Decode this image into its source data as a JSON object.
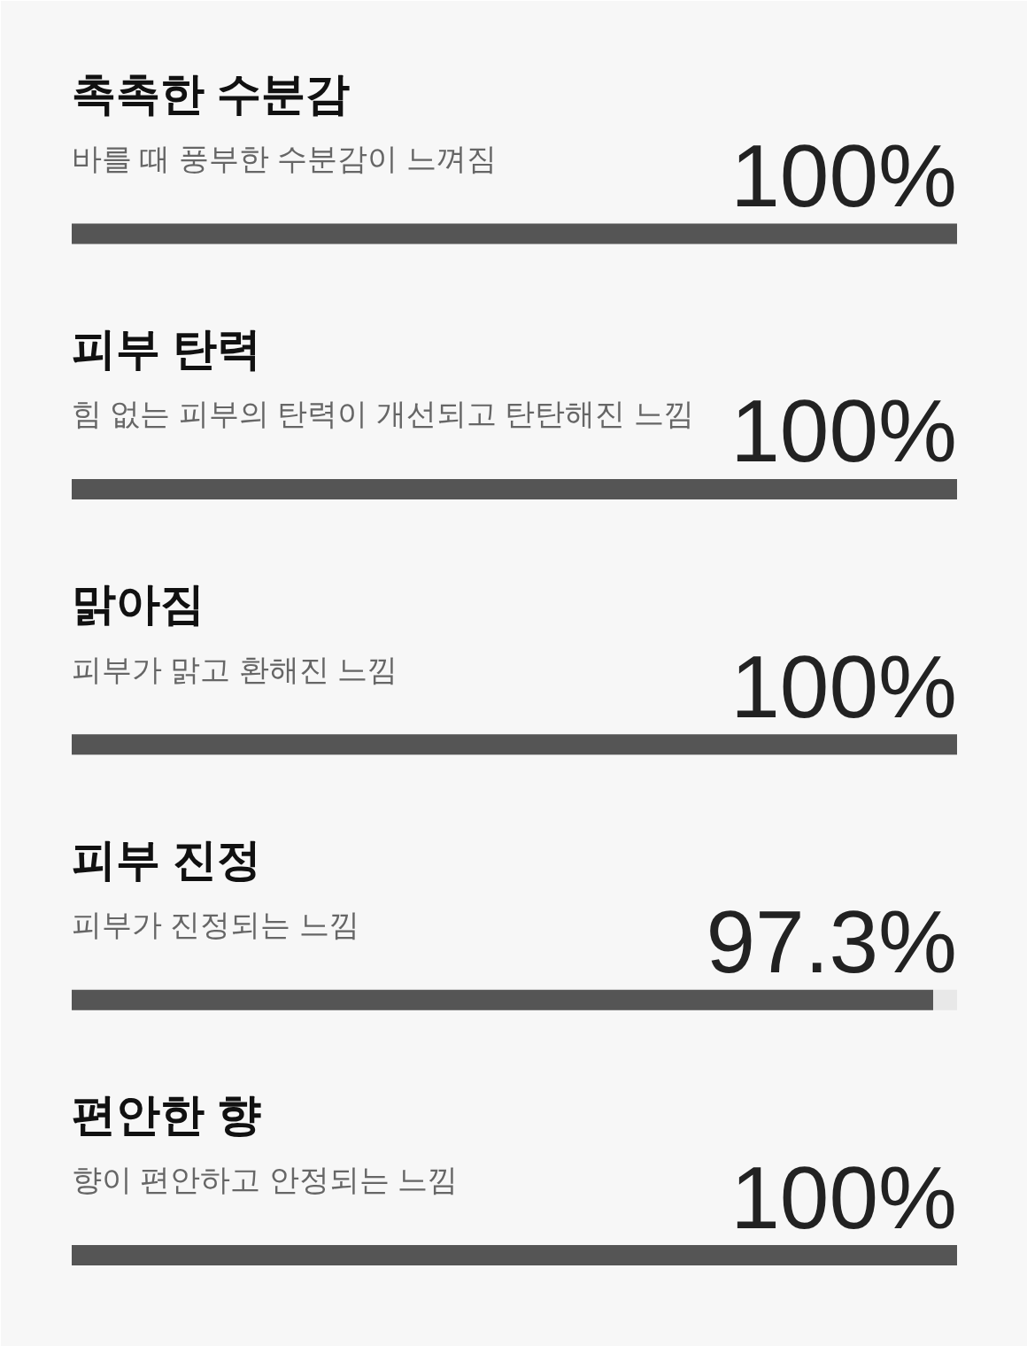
{
  "chart_data": {
    "type": "bar",
    "orientation": "horizontal",
    "categories": [
      "촉촉한 수분감",
      "피부 탄력",
      "맑아짐",
      "피부 진정",
      "편안한 향"
    ],
    "values": [
      100,
      100,
      100,
      97.3,
      100
    ],
    "color": "#555555",
    "value_labels": [
      "100%",
      "100%",
      "100%",
      "97.3%",
      "100%"
    ],
    "annotations": [
      "바를 때 풍부한 수분감이 느껴짐",
      "힘 없는 피부의 탄력이 개선되고 탄탄해진 느낌",
      "피부가 맑고 환해진 느낌",
      "피부가 진정되는 느낌",
      "향이 편안하고 안정되는 느낌"
    ],
    "tick_labels": "y"
  }
}
